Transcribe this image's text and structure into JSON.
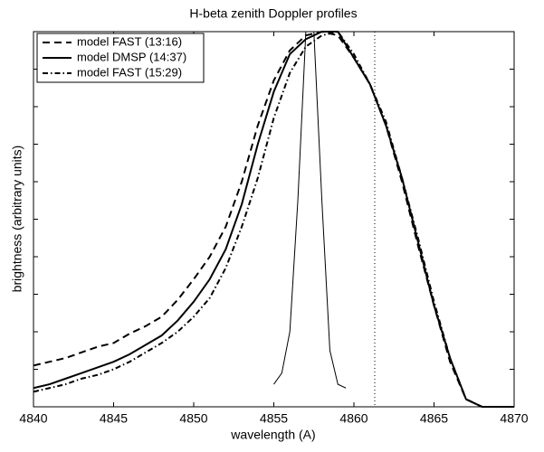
{
  "chart_data": {
    "type": "line",
    "title": "H-beta zenith Doppler profiles",
    "x_label": "wavelength (A)",
    "y_label": "brightness (arbitrary units)",
    "x": [
      4840,
      4841,
      4842,
      4843,
      4844,
      4845,
      4846,
      4847,
      4848,
      4849,
      4850,
      4851,
      4852,
      4853,
      4854,
      4855,
      4856,
      4857,
      4858,
      4859,
      4860,
      4861,
      4862,
      4863,
      4864,
      4865,
      4866,
      4867,
      4868,
      4869,
      4870
    ],
    "series": [
      {
        "name": "model FAST (13:16)",
        "color": "#000000",
        "dash": "8,5",
        "values": [
          0.11,
          0.12,
          0.13,
          0.145,
          0.16,
          0.17,
          0.195,
          0.215,
          0.24,
          0.285,
          0.34,
          0.4,
          0.48,
          0.6,
          0.75,
          0.87,
          0.95,
          0.99,
          1.0,
          0.99,
          0.93,
          0.86,
          0.75,
          0.6,
          0.43,
          0.27,
          0.12,
          0.02,
          0,
          0,
          0
        ]
      },
      {
        "name": "model DMSP (14:37)",
        "color": "#000000",
        "dash": "none",
        "values": [
          0.05,
          0.06,
          0.075,
          0.09,
          0.105,
          0.12,
          0.14,
          0.165,
          0.19,
          0.23,
          0.28,
          0.34,
          0.42,
          0.54,
          0.7,
          0.84,
          0.94,
          0.98,
          1.0,
          1.0,
          0.93,
          0.86,
          0.75,
          0.61,
          0.44,
          0.27,
          0.13,
          0.02,
          0,
          0,
          0
        ]
      },
      {
        "name": "model FAST (15:29)",
        "color": "#000000",
        "dash": "6,3,1.5,3",
        "values": [
          0.04,
          0.05,
          0.06,
          0.075,
          0.085,
          0.1,
          0.12,
          0.145,
          0.17,
          0.2,
          0.24,
          0.29,
          0.37,
          0.48,
          0.61,
          0.77,
          0.89,
          0.96,
          0.99,
          1.0,
          0.94,
          0.86,
          0.76,
          0.61,
          0.45,
          0.28,
          0.13,
          0.02,
          0,
          0,
          0
        ]
      }
    ],
    "instrument_profile": {
      "color": "#000000",
      "x": [
        4855,
        4855.5,
        4856,
        4856.5,
        4857,
        4857.5,
        4858,
        4858.5,
        4859,
        4859.5
      ],
      "values": [
        0.06,
        0.09,
        0.2,
        0.55,
        1.0,
        1.0,
        0.55,
        0.15,
        0.06,
        0.05
      ]
    },
    "vline": 4861.3,
    "xlim": [
      4840,
      4870
    ],
    "xticks": [
      4840,
      4845,
      4850,
      4855,
      4860,
      4865,
      4870
    ],
    "ylim": [
      0,
      1
    ],
    "yticks": [
      0,
      0.1,
      0.2,
      0.3,
      0.4,
      0.5,
      0.6,
      0.7,
      0.8,
      0.9,
      1
    ],
    "legend": "upper-left"
  }
}
